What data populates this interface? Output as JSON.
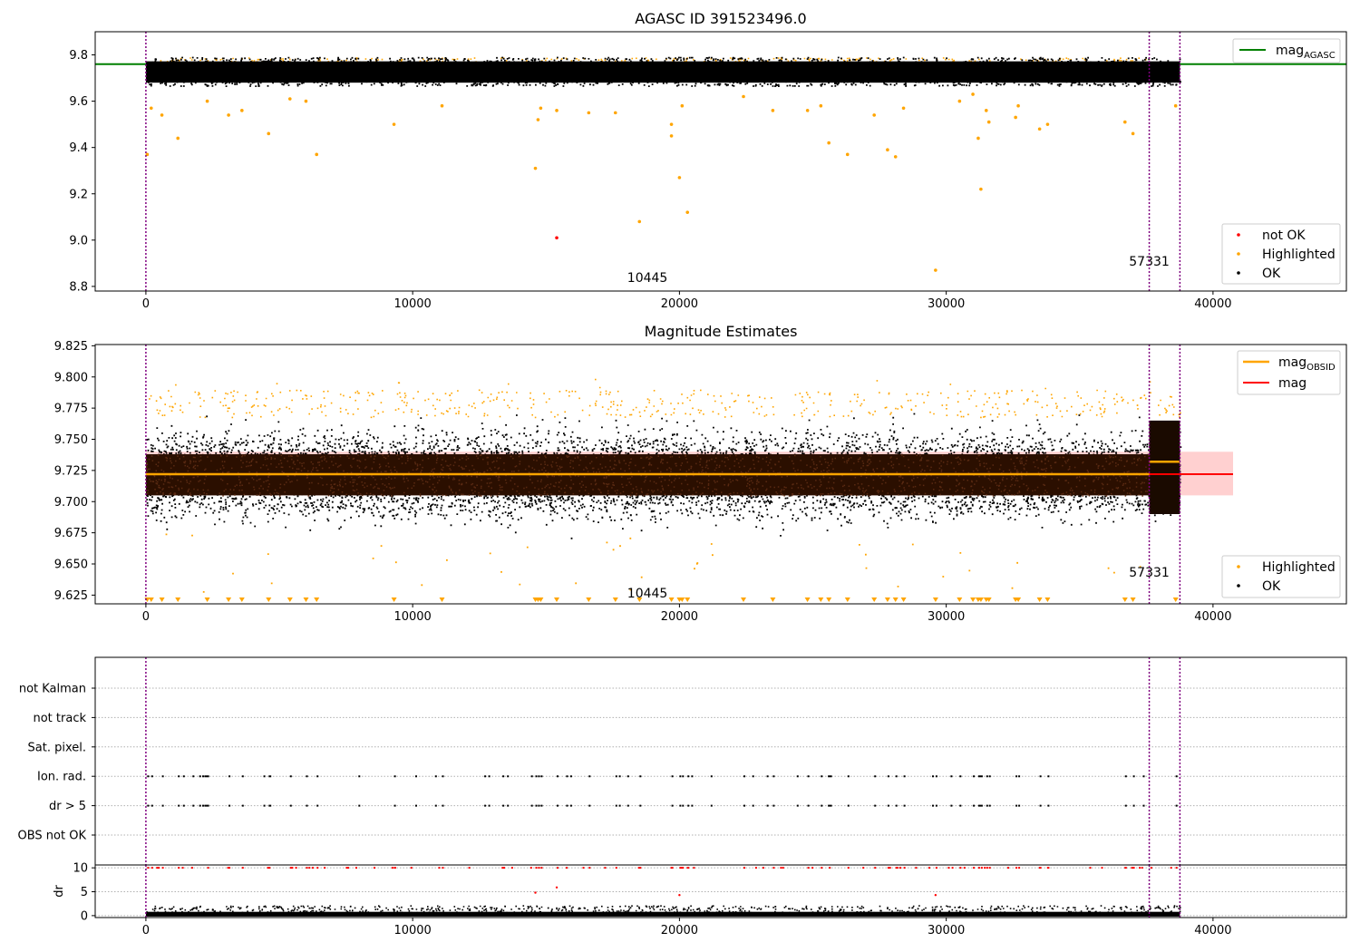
{
  "colors": {
    "ok": "#000000",
    "highlighted": "#FFA500",
    "not_ok": "#FF0000",
    "mag_agasc": "#008000",
    "mag": "#FF0000",
    "mag_obsid": "#FFA500",
    "mag_band": "#FFD0D0",
    "dense_band": "#2B0F00",
    "obs_line": "#800080",
    "grid": "#B0B0B0"
  },
  "chart_data": [
    {
      "type": "scatter",
      "title": "AGASC ID 391523496.0",
      "xlim": [
        -1900,
        45000
      ],
      "ylim": [
        8.78,
        9.9
      ],
      "x_ticks": [
        "0",
        "10000",
        "20000",
        "30000",
        "40000"
      ],
      "y_ticks": [
        "8.8",
        "9.0",
        "9.2",
        "9.4",
        "9.6",
        "9.8"
      ],
      "n_points": 38800,
      "ok_band": [
        9.68,
        9.78
      ],
      "mag_agasc": 9.76,
      "obs_boundaries": [
        0,
        37610,
        38760
      ],
      "obsid_labels": [
        {
          "text": "10445",
          "x": 18800,
          "y": 8.82
        },
        {
          "text": "57331",
          "x": 37610,
          "y": 8.89
        }
      ],
      "not_ok_points": [
        [
          15400,
          9.01
        ]
      ],
      "highlighted_outliers": [
        [
          50,
          9.37
        ],
        [
          200,
          9.57
        ],
        [
          600,
          9.54
        ],
        [
          1200,
          9.44
        ],
        [
          2300,
          9.6
        ],
        [
          3100,
          9.54
        ],
        [
          3600,
          9.56
        ],
        [
          4600,
          9.46
        ],
        [
          5400,
          9.61
        ],
        [
          6000,
          9.6
        ],
        [
          6400,
          9.37
        ],
        [
          9300,
          9.5
        ],
        [
          11100,
          9.58
        ],
        [
          14800,
          9.57
        ],
        [
          14700,
          9.52
        ],
        [
          14600,
          9.31
        ],
        [
          15400,
          9.56
        ],
        [
          16600,
          9.55
        ],
        [
          17600,
          9.55
        ],
        [
          18500,
          9.08
        ],
        [
          19700,
          9.5
        ],
        [
          19700,
          9.45
        ],
        [
          20000,
          9.27
        ],
        [
          20100,
          9.58
        ],
        [
          20300,
          9.12
        ],
        [
          22400,
          9.62
        ],
        [
          23500,
          9.56
        ],
        [
          24800,
          9.56
        ],
        [
          25300,
          9.58
        ],
        [
          25600,
          9.42
        ],
        [
          26300,
          9.37
        ],
        [
          27300,
          9.54
        ],
        [
          27800,
          9.39
        ],
        [
          28100,
          9.36
        ],
        [
          28400,
          9.57
        ],
        [
          29600,
          8.87
        ],
        [
          30500,
          9.6
        ],
        [
          31000,
          9.63
        ],
        [
          31200,
          9.44
        ],
        [
          31300,
          9.22
        ],
        [
          31500,
          9.56
        ],
        [
          31600,
          9.51
        ],
        [
          32600,
          9.53
        ],
        [
          32700,
          9.58
        ],
        [
          33500,
          9.48
        ],
        [
          33800,
          9.5
        ],
        [
          36700,
          9.51
        ],
        [
          37000,
          9.46
        ],
        [
          38600,
          9.58
        ]
      ],
      "legend": [
        "not OK",
        "Highlighted",
        "OK"
      ],
      "line_legend": "mag"
    },
    {
      "type": "scatter",
      "title": "Magnitude Estimates",
      "xlim": [
        -1900,
        45000
      ],
      "ylim": [
        9.618,
        9.826
      ],
      "x_ticks": [
        "0",
        "10000",
        "20000",
        "30000",
        "40000"
      ],
      "y_ticks": [
        "9.625",
        "9.650",
        "9.675",
        "9.700",
        "9.725",
        "9.750",
        "9.775",
        "9.800",
        "9.825"
      ],
      "n_points": 38800,
      "mag": 9.722,
      "mag_band": [
        9.705,
        9.74
      ],
      "mag_obsid": [
        {
          "x0": 0,
          "x1": 37610,
          "value": 9.722
        },
        {
          "x0": 37610,
          "x1": 38760,
          "value": 9.732
        }
      ],
      "dense_band": [
        9.705,
        9.738
      ],
      "ok_band": [
        9.68,
        9.765
      ],
      "obsid_labels": [
        {
          "text": "10445",
          "x": 18800,
          "y": 9.623
        },
        {
          "text": "57331",
          "x": 37610,
          "y": 9.64
        }
      ],
      "legend": [
        "Highlighted",
        "OK"
      ],
      "line_legend": [
        "mag",
        "mag"
      ]
    },
    {
      "type": "scatter",
      "xlim": [
        -1900,
        45000
      ],
      "categories": [
        "not Kalman",
        "not track",
        "Sat. pixel.",
        "Ion. rad.",
        "dr > 5",
        "OBS not OK"
      ],
      "flagged_rows": [
        "Ion. rad.",
        "dr > 5"
      ],
      "n_flag_markers": 110
    },
    {
      "type": "scatter",
      "xlim": [
        -1900,
        45000
      ],
      "ylabel": "dr",
      "ylim": [
        -0.4,
        10.6
      ],
      "y_ticks": [
        "0",
        "5",
        "10"
      ],
      "x_ticks": [
        "0",
        "10000",
        "20000",
        "30000",
        "40000"
      ],
      "dr_clip": 10,
      "dr_outliers": [
        [
          14600,
          4.8
        ],
        [
          15400,
          5.9
        ],
        [
          20000,
          4.3
        ],
        [
          29600,
          4.3
        ]
      ]
    }
  ],
  "legend_labels": {
    "mag_agasc_main": "mag",
    "mag_agasc_sub": "AGASC",
    "mag_obsid_main": "mag",
    "mag_obsid_sub": "OBSID",
    "mag": "mag",
    "not_ok": "not OK",
    "highlighted": "Highlighted",
    "ok": "OK"
  }
}
